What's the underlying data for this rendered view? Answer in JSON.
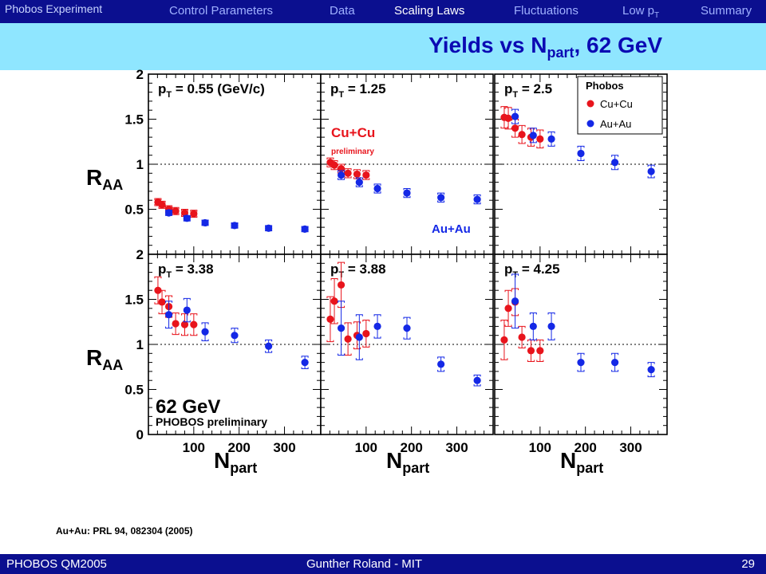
{
  "header": {
    "brand": "Phobos Experiment",
    "nav": [
      {
        "label": "Control Parameters",
        "active": false
      },
      {
        "label": "Data",
        "active": false
      },
      {
        "label": "Scaling Laws",
        "active": true
      },
      {
        "label": "Fluctuations",
        "active": false
      },
      {
        "label": "Low p",
        "sub": "T",
        "active": false
      },
      {
        "label": "Summary",
        "active": false
      }
    ],
    "title_main": "Yields vs N",
    "title_sub": "part",
    "title_tail": ", 62 GeV"
  },
  "reference": "Au+Au: PRL 94, 082304 (2005)",
  "footer": {
    "left": "PHOBOS QM2005",
    "center": "Gunther Roland - MIT",
    "page": "29"
  },
  "colors": {
    "nav_bar": "#0b0f8f",
    "title_bar": "#8fe6ff",
    "title_text": "#0b0ab3",
    "cucu": "#e8141c",
    "auau": "#1428e6"
  },
  "chart_data": {
    "type": "scatter",
    "ylabel": "R",
    "ylabel_sub": "AA",
    "xlabel": "N",
    "xlabel_sub": "part",
    "xlim": [
      0,
      380
    ],
    "ylim": [
      0,
      2
    ],
    "y_ticks": [
      "0",
      "0.5",
      "1",
      "1.5",
      "2"
    ],
    "x_ticks": [
      "100",
      "200",
      "300"
    ],
    "reference_line": 1,
    "legend": {
      "title": "Phobos",
      "entries": [
        "Cu+Cu",
        "Au+Au"
      ]
    },
    "annotations": {
      "energy": "62 GeV",
      "experiment": "PHOBOS preliminary",
      "cucu_label": "Cu+Cu",
      "cucu_note": "preliminary",
      "auau_label": "Au+Au"
    },
    "panels": [
      {
        "label_prefix": "p",
        "label_sub": "T",
        "label_value": "= 0.55 (GeV/c)",
        "series": [
          {
            "name": "Cu+Cu",
            "points": [
              [
                21,
                0.58,
                0.04
              ],
              [
                30,
                0.55,
                0.04
              ],
              [
                45,
                0.5,
                0.04
              ],
              [
                60,
                0.48,
                0.04
              ],
              [
                80,
                0.46,
                0.04
              ],
              [
                100,
                0.45,
                0.04
              ]
            ]
          },
          {
            "name": "Au+Au",
            "points": [
              [
                45,
                0.46,
                0.03
              ],
              [
                85,
                0.4,
                0.03
              ],
              [
                125,
                0.35,
                0.03
              ],
              [
                190,
                0.32,
                0.03
              ],
              [
                265,
                0.29,
                0.03
              ],
              [
                345,
                0.28,
                0.03
              ]
            ]
          }
        ]
      },
      {
        "label_prefix": "p",
        "label_sub": "T",
        "label_value": "= 1.25",
        "series": [
          {
            "name": "Cu+Cu",
            "points": [
              [
                21,
                1.02,
                0.05
              ],
              [
                30,
                0.99,
                0.05
              ],
              [
                45,
                0.95,
                0.05
              ],
              [
                60,
                0.9,
                0.05
              ],
              [
                80,
                0.89,
                0.05
              ],
              [
                100,
                0.88,
                0.05
              ]
            ]
          },
          {
            "name": "Au+Au",
            "points": [
              [
                45,
                0.88,
                0.05
              ],
              [
                85,
                0.8,
                0.05
              ],
              [
                125,
                0.73,
                0.05
              ],
              [
                190,
                0.68,
                0.05
              ],
              [
                265,
                0.63,
                0.05
              ],
              [
                345,
                0.61,
                0.05
              ]
            ]
          }
        ]
      },
      {
        "label_prefix": "p",
        "label_sub": "T",
        "label_value": "= 2.5",
        "series": [
          {
            "name": "Cu+Cu",
            "points": [
              [
                21,
                1.52,
                0.12
              ],
              [
                30,
                1.51,
                0.12
              ],
              [
                45,
                1.4,
                0.1
              ],
              [
                60,
                1.33,
                0.1
              ],
              [
                80,
                1.3,
                0.1
              ],
              [
                100,
                1.28,
                0.1
              ]
            ]
          },
          {
            "name": "Au+Au",
            "points": [
              [
                45,
                1.53,
                0.08
              ],
              [
                85,
                1.32,
                0.08
              ],
              [
                125,
                1.28,
                0.08
              ],
              [
                190,
                1.12,
                0.08
              ],
              [
                265,
                1.02,
                0.08
              ],
              [
                345,
                0.92,
                0.07
              ]
            ]
          }
        ]
      },
      {
        "label_prefix": "p",
        "label_sub": "T",
        "label_value": "= 3.38",
        "series": [
          {
            "name": "Cu+Cu",
            "points": [
              [
                21,
                1.6,
                0.15
              ],
              [
                30,
                1.47,
                0.13
              ],
              [
                45,
                1.42,
                0.12
              ],
              [
                60,
                1.23,
                0.12
              ],
              [
                80,
                1.22,
                0.12
              ],
              [
                100,
                1.22,
                0.12
              ]
            ]
          },
          {
            "name": "Au+Au",
            "points": [
              [
                45,
                1.33,
                0.15
              ],
              [
                85,
                1.38,
                0.13
              ],
              [
                125,
                1.14,
                0.1
              ],
              [
                190,
                1.1,
                0.08
              ],
              [
                265,
                0.98,
                0.07
              ],
              [
                345,
                0.8,
                0.07
              ]
            ]
          }
        ]
      },
      {
        "label_prefix": "p",
        "label_sub": "T",
        "label_value": "= 3.88",
        "series": [
          {
            "name": "Cu+Cu",
            "points": [
              [
                21,
                1.28,
                0.25
              ],
              [
                30,
                1.48,
                0.25
              ],
              [
                45,
                1.66,
                0.25
              ],
              [
                60,
                1.06,
                0.18
              ],
              [
                80,
                1.1,
                0.15
              ],
              [
                100,
                1.12,
                0.15
              ]
            ]
          },
          {
            "name": "Au+Au",
            "points": [
              [
                45,
                1.18,
                0.3
              ],
              [
                85,
                1.08,
                0.25
              ],
              [
                125,
                1.2,
                0.13
              ],
              [
                190,
                1.18,
                0.12
              ],
              [
                265,
                0.78,
                0.08
              ],
              [
                345,
                0.6,
                0.06
              ]
            ]
          }
        ]
      },
      {
        "label_prefix": "p",
        "label_sub": "T",
        "label_value": "= 4.25",
        "series": [
          {
            "name": "Cu+Cu",
            "points": [
              [
                21,
                1.05,
                0.22
              ],
              [
                30,
                1.4,
                0.2
              ],
              [
                45,
                1.47,
                0.15
              ],
              [
                60,
                1.08,
                0.12
              ],
              [
                80,
                0.93,
                0.12
              ],
              [
                100,
                0.93,
                0.12
              ]
            ]
          },
          {
            "name": "Au+Au",
            "points": [
              [
                45,
                1.48,
                0.3
              ],
              [
                85,
                1.2,
                0.15
              ],
              [
                125,
                1.2,
                0.15
              ],
              [
                190,
                0.8,
                0.1
              ],
              [
                265,
                0.8,
                0.1
              ],
              [
                345,
                0.72,
                0.08
              ]
            ]
          }
        ]
      }
    ]
  }
}
